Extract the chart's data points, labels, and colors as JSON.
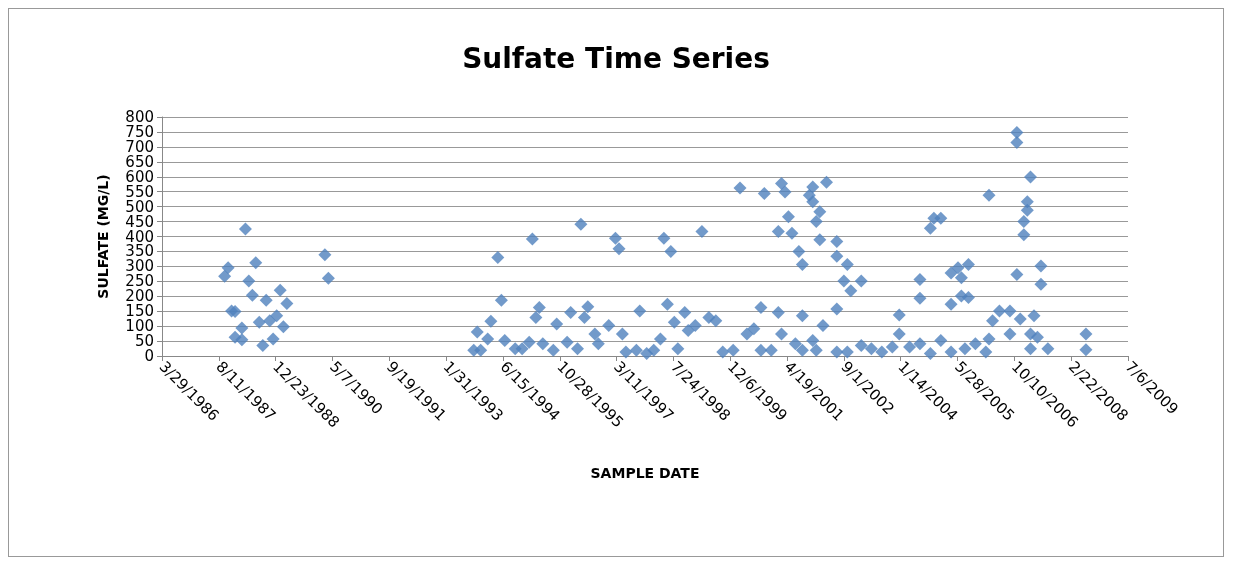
{
  "chart_data": {
    "type": "scatter",
    "title": "Sulfate Time Series",
    "xlabel": "SAMPLE DATE",
    "ylabel": "SULFATE (MG/L)",
    "xlim": [
      "1986-03-29",
      "2009-07-06"
    ],
    "xticks": [
      {
        "value": "1986-03-29",
        "label": "3/29/1986"
      },
      {
        "value": "1987-08-11",
        "label": "8/11/1987"
      },
      {
        "value": "1988-12-23",
        "label": "12/23/1988"
      },
      {
        "value": "1990-05-07",
        "label": "5/7/1990"
      },
      {
        "value": "1991-09-19",
        "label": "9/19/1991"
      },
      {
        "value": "1993-01-31",
        "label": "1/31/1993"
      },
      {
        "value": "1994-06-15",
        "label": "6/15/1994"
      },
      {
        "value": "1995-10-28",
        "label": "10/28/1995"
      },
      {
        "value": "1997-03-11",
        "label": "3/11/1997"
      },
      {
        "value": "1998-07-24",
        "label": "7/24/1998"
      },
      {
        "value": "1999-12-06",
        "label": "12/6/1999"
      },
      {
        "value": "2001-04-19",
        "label": "4/19/2001"
      },
      {
        "value": "2002-09-01",
        "label": "9/1/2002"
      },
      {
        "value": "2004-01-14",
        "label": "1/14/2004"
      },
      {
        "value": "2005-05-28",
        "label": "5/28/2005"
      },
      {
        "value": "2006-10-10",
        "label": "10/10/2006"
      },
      {
        "value": "2008-02-22",
        "label": "2/22/2008"
      },
      {
        "value": "2009-07-06",
        "label": "7/6/2009"
      }
    ],
    "ylim": [
      0,
      800
    ],
    "yticks": [
      0,
      50,
      100,
      150,
      200,
      250,
      300,
      350,
      400,
      450,
      500,
      550,
      600,
      650,
      700,
      750,
      800
    ],
    "grid": "y",
    "marker": "diamond",
    "series": [
      {
        "color": "#4f81bd",
        "x": [
          "1987-11",
          "1987-10",
          "1988-04",
          "1988-07",
          "1988-05",
          "1988-06",
          "1988-10",
          "1989-02",
          "1989-04",
          "1987-12",
          "1988-01",
          "1988-08",
          "1988-11",
          "1989-01",
          "1989-03",
          "1988-03",
          "1988-01",
          "1988-03",
          "1988-09",
          "1988-12",
          "1990-03",
          "1990-04",
          "1993-10",
          "1993-12",
          "1993-11",
          "1994-02",
          "1994-05",
          "1994-03",
          "1994-06",
          "1994-07",
          "1994-10",
          "1994-12",
          "1995-02",
          "1995-03",
          "1995-04",
          "1995-05",
          "1995-06",
          "1995-09",
          "1995-10",
          "1996-01",
          "1996-02",
          "1996-04",
          "1996-05",
          "1996-06",
          "1996-07",
          "1996-09",
          "1996-10",
          "1997-01",
          "1997-03",
          "1997-04",
          "1997-05",
          "1997-06",
          "1997-09",
          "1997-10",
          "1997-12",
          "1998-02",
          "1998-04",
          "1998-05",
          "1998-06",
          "1998-07",
          "1998-08",
          "1998-09",
          "1998-11",
          "1998-12",
          "1999-02",
          "1999-04",
          "1999-06",
          "1999-08",
          "1999-10",
          "2000-01",
          "2000-03",
          "2000-05",
          "2000-07",
          "2000-09",
          "2000-09",
          "2000-10",
          "2000-12",
          "2001-02",
          "2001-02",
          "2001-03",
          "2001-03",
          "2001-04",
          "2001-05",
          "2001-06",
          "2001-08",
          "2001-09",
          "2001-09",
          "2001-07",
          "2001-09",
          "2001-12",
          "2001-11",
          "2001-12",
          "2001-12",
          "2002-02",
          "2002-01",
          "2002-02",
          "2002-04",
          "2002-01",
          "2002-03",
          "2002-07",
          "2002-07",
          "2002-10",
          "2002-09",
          "2002-11",
          "2003-02",
          "2002-07",
          "2002-07",
          "2002-10",
          "2003-02",
          "2003-05",
          "2003-08",
          "2003-11",
          "2004-01",
          "2004-01",
          "2004-04",
          "2004-07",
          "2004-07",
          "2004-07",
          "2004-10",
          "2004-11",
          "2005-01",
          "2004-10",
          "2005-01",
          "2005-04",
          "2005-04",
          "2005-04",
          "2005-06",
          "2005-07",
          "2005-07",
          "2005-09",
          "2005-09",
          "2005-08",
          "2005-11",
          "2006-02",
          "2006-03",
          "2006-04",
          "2006-03",
          "2006-06",
          "2006-09",
          "2006-09",
          "2006-11",
          "2006-11",
          "2006-11",
          "2006-12",
          "2007-02",
          "2007-02",
          "2007-01",
          "2007-01",
          "2007-03",
          "2007-03",
          "2007-03",
          "2007-04",
          "2007-05",
          "2007-06",
          "2007-06",
          "2007-08",
          "2008-07",
          "2008-07"
        ],
        "values": [
          295,
          267,
          425,
          312,
          251,
          203,
          187,
          220,
          176,
          151,
          149,
          113,
          118,
          135,
          98,
          94,
          63,
          54,
          35,
          57,
          339,
          260,
          19,
          19,
          80,
          57,
          330,
          116,
          187,
          52,
          24,
          24,
          46,
          392,
          129,
          162,
          41,
          19,
          107,
          46,
          146,
          24,
          441,
          129,
          165,
          74,
          41,
          102,
          394,
          359,
          74,
          13,
          19,
          151,
          8,
          19,
          57,
          394,
          173,
          350,
          113,
          24,
          146,
          85,
          102,
          417,
          129,
          118,
          13,
          19,
          562,
          74,
          91,
          162,
          19,
          544,
          19,
          417,
          146,
          577,
          74,
          549,
          466,
          411,
          350,
          306,
          135,
          41,
          19,
          52,
          538,
          566,
          516,
          483,
          450,
          389,
          582,
          19,
          102,
          383,
          334,
          306,
          251,
          218,
          251,
          157,
          13,
          13,
          35,
          24,
          13,
          30,
          137,
          74,
          30,
          256,
          193,
          41,
          8,
          461,
          461,
          428,
          52,
          278,
          13,
          173,
          295,
          262,
          201,
          306,
          196,
          24,
          41,
          13,
          57,
          118,
          538,
          151,
          151,
          74,
          273,
          748,
          715,
          124,
          488,
          516,
          450,
          406,
          74,
          24,
          599,
          135,
          63,
          301,
          240,
          24,
          74,
          21
        ]
      }
    ]
  }
}
